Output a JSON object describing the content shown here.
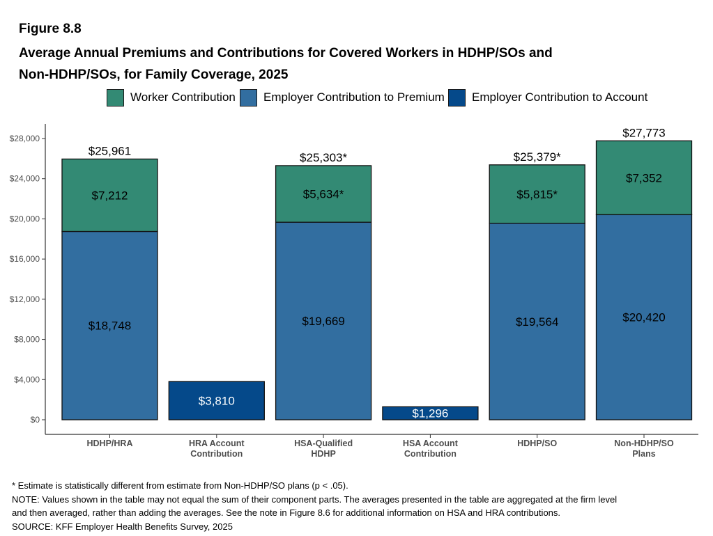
{
  "figure_label": "Figure 8.8",
  "title_line1": "Average Annual Premiums and Contributions for Covered Workers in HDHP/SOs and",
  "title_line2": "Non-HDHP/SOs, for Family Coverage, 2025",
  "colors": {
    "worker": "#338a74",
    "employer_premium": "#326ea0",
    "employer_account": "#05498a"
  },
  "legend": [
    {
      "label": "Worker Contribution",
      "color": "#338a74"
    },
    {
      "label": "Employer Contribution to Premium",
      "color": "#326ea0"
    },
    {
      "label": "Employer Contribution to Account",
      "color": "#05498a"
    }
  ],
  "chart_data": {
    "type": "bar",
    "stacked": true,
    "ylim": [
      0,
      28000
    ],
    "yticks": [
      0,
      4000,
      8000,
      12000,
      16000,
      20000,
      24000,
      28000
    ],
    "ytick_labels": [
      "$0",
      "$4,000",
      "$8,000",
      "$12,000",
      "$16,000",
      "$20,000",
      "$24,000",
      "$28,000"
    ],
    "grid": false,
    "legend_position": "top",
    "categories": [
      [
        "HDHP/HRA"
      ],
      [
        "HRA Account",
        "Contribution"
      ],
      [
        "HSA-Qualified",
        "HDHP"
      ],
      [
        "HSA Account",
        "Contribution"
      ],
      [
        "HDHP/SO"
      ],
      [
        "Non-HDHP/SO",
        "Plans"
      ]
    ],
    "series": [
      {
        "name": "Employer Contribution to Premium",
        "values": [
          18748,
          null,
          19669,
          null,
          19564,
          20420
        ],
        "labels": [
          "$18,748",
          "",
          "$19,669",
          "",
          "$19,564",
          "$20,420"
        ]
      },
      {
        "name": "Worker Contribution",
        "values": [
          7212,
          null,
          5634,
          null,
          5815,
          7352
        ],
        "labels": [
          "$7,212",
          "",
          "$5,634*",
          "",
          "$5,815*",
          "$7,352"
        ]
      },
      {
        "name": "Employer Contribution to Account",
        "values": [
          null,
          3810,
          null,
          1296,
          null,
          null
        ],
        "labels": [
          "",
          "$3,810",
          "",
          "$1,296",
          "",
          ""
        ]
      }
    ],
    "totals": [
      25961,
      null,
      25303,
      null,
      25379,
      27773
    ],
    "total_labels": [
      "$25,961",
      "",
      "$25,303*",
      "",
      "$25,379*",
      "$27,773"
    ]
  },
  "footnotes": [
    "* Estimate is statistically different from estimate from Non-HDHP/SO plans (p < .05).",
    "NOTE: Values shown in the table may not equal the sum of their component parts. The averages presented in the table are aggregated at the firm level",
    "and then averaged, rather than adding the averages. See the note in Figure 8.6 for additional information on HSA and HRA contributions.",
    "SOURCE: KFF Employer Health Benefits Survey, 2025"
  ]
}
